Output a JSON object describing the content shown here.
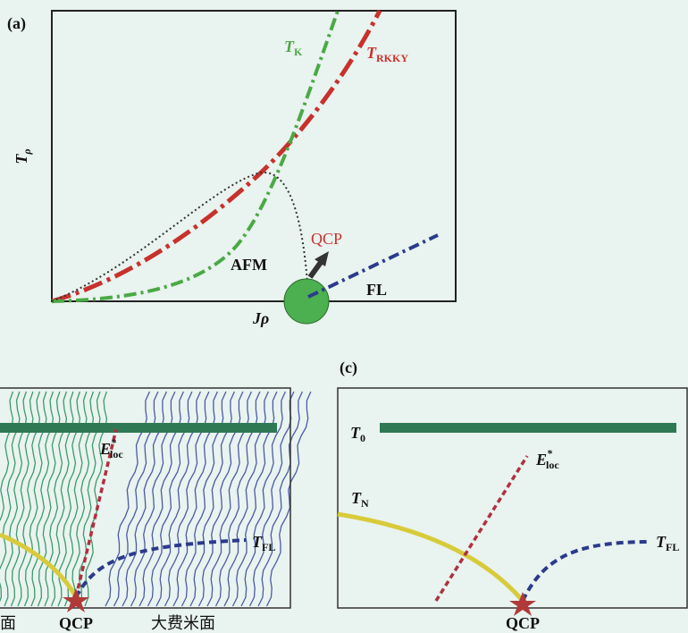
{
  "panel_a": {
    "label": "(a)",
    "y_axis": {
      "main": "T",
      "sub": "ρ"
    },
    "x_axis": "Jρ",
    "t_k": {
      "main": "T",
      "sub": "K"
    },
    "t_rkky": {
      "main": "T",
      "sub": "RKKY"
    },
    "qcp": "QCP",
    "afm": "AFM",
    "fl": "FL"
  },
  "panel_b": {
    "left_region": "面",
    "qcp": "QCP",
    "right_region": "大费米面",
    "e_loc": {
      "main": "E",
      "sup": "*",
      "sub": "loc"
    },
    "t_fl": {
      "main": "T",
      "sub": "FL"
    }
  },
  "panel_c": {
    "label": "(c)",
    "t_0": {
      "main": "T",
      "sub": "0"
    },
    "e_loc": {
      "main": "E",
      "sup": "*",
      "sub": "loc"
    },
    "t_n": {
      "main": "T",
      "sub": "N"
    },
    "t_fl": {
      "main": "T",
      "sub": "FL"
    },
    "qcp": "QCP"
  }
}
